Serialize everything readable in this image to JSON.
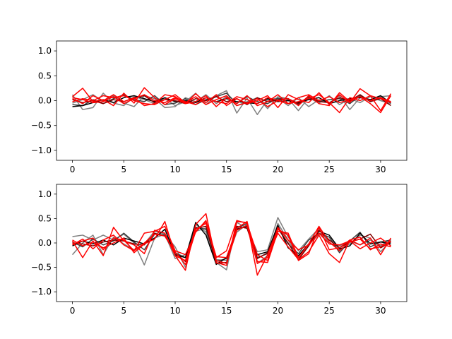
{
  "chart_data": [
    {
      "type": "line",
      "title": "",
      "xlabel": "",
      "ylabel": "",
      "xlim": [
        -1.55,
        32.55
      ],
      "ylim": [
        -1.2,
        1.2
      ],
      "xticks": [
        0,
        5,
        10,
        15,
        20,
        25,
        30
      ],
      "yticks": [
        -1.0,
        -0.5,
        0.0,
        0.5,
        1.0
      ],
      "xtick_labels": [
        "0",
        "5",
        "10",
        "15",
        "20",
        "25",
        "30"
      ],
      "ytick_labels": [
        "−1.0",
        "−0.5",
        "0.0",
        "0.5",
        "1.0"
      ],
      "grid": false,
      "x": [
        0,
        1,
        2,
        3,
        4,
        5,
        6,
        7,
        8,
        9,
        10,
        11,
        12,
        13,
        14,
        15,
        16,
        17,
        18,
        19,
        20,
        21,
        22,
        23,
        24,
        25,
        26,
        27,
        28,
        29,
        30,
        31
      ],
      "series": [
        {
          "color": "#7f7f7f",
          "values": [
            0.12,
            -0.18,
            -0.14,
            0.15,
            -0.05,
            -0.1,
            0.08,
            0.02,
            -0.06,
            0.05,
            -0.1,
            -0.02,
            0.15,
            -0.08,
            0.1,
            0.2,
            -0.25,
            0.05,
            -0.28,
            0.02,
            0.05,
            -0.1,
            0.06,
            -0.12,
            0.02,
            -0.05,
            0.1,
            -0.18,
            0.06,
            0.02,
            0.08,
            0.1
          ]
        },
        {
          "color": "#7f7f7f",
          "values": [
            -0.05,
            0.02,
            0.12,
            -0.02,
            0.1,
            -0.05,
            -0.12,
            0.1,
            0.04,
            -0.14,
            -0.12,
            0.06,
            -0.02,
            0.12,
            -0.06,
            0.08,
            -0.1,
            -0.02,
            0.06,
            -0.16,
            0.08,
            0.04,
            -0.2,
            0.06,
            -0.05,
            0.1,
            -0.08,
            0.04,
            -0.04,
            0.08,
            0.0,
            -0.06
          ]
        },
        {
          "color": "#3f3f3f",
          "values": [
            -0.08,
            -0.1,
            0.02,
            -0.06,
            0.04,
            0.12,
            0.02,
            -0.02,
            0.1,
            -0.08,
            -0.05,
            0.04,
            -0.08,
            0.02,
            0.08,
            0.15,
            -0.06,
            0.08,
            -0.02,
            -0.06,
            0.05,
            0.02,
            -0.08,
            0.05,
            -0.02,
            0.02,
            0.04,
            -0.06,
            0.1,
            -0.02,
            0.06,
            -0.02
          ]
        },
        {
          "color": "#000000",
          "values": [
            -0.12,
            -0.1,
            -0.04,
            0.02,
            -0.04,
            0.06,
            0.1,
            0.04,
            -0.02,
            0.06,
            -0.02,
            0.0,
            -0.04,
            0.06,
            -0.02,
            0.04,
            -0.02,
            -0.04,
            -0.06,
            0.04,
            -0.02,
            0.0,
            -0.04,
            0.02,
            0.06,
            -0.06,
            0.0,
            0.04,
            0.06,
            0.02,
            0.1,
            -0.05
          ]
        },
        {
          "color": "#7f0000",
          "values": [
            0.02,
            -0.04,
            0.0,
            -0.06,
            0.02,
            -0.02,
            0.06,
            0.1,
            -0.04,
            0.02,
            0.0,
            -0.06,
            0.04,
            0.0,
            0.08,
            -0.02,
            0.04,
            -0.08,
            0.06,
            -0.02,
            0.02,
            0.04,
            -0.06,
            0.08,
            -0.02,
            -0.04,
            0.06,
            0.0,
            0.12,
            -0.02,
            0.04,
            -0.1
          ]
        },
        {
          "color": "#ff0000",
          "values": [
            0.08,
            0.25,
            -0.02,
            0.02,
            -0.1,
            0.15,
            -0.05,
            0.26,
            0.06,
            -0.08,
            0.04,
            -0.06,
            0.14,
            -0.04,
            0.12,
            -0.1,
            0.04,
            -0.06,
            0.0,
            0.1,
            -0.14,
            0.12,
            0.02,
            -0.04,
            0.16,
            -0.08,
            0.12,
            -0.04,
            0.24,
            0.1,
            -0.2,
            0.14
          ]
        },
        {
          "color": "#ff0000",
          "values": [
            0.04,
            -0.06,
            0.1,
            0.0,
            0.12,
            -0.02,
            0.06,
            -0.1,
            -0.06,
            0.12,
            0.08,
            -0.06,
            -0.02,
            0.1,
            -0.12,
            0.06,
            -0.06,
            0.1,
            -0.1,
            -0.02,
            0.12,
            -0.06,
            -0.02,
            0.04,
            0.12,
            -0.04,
            -0.24,
            0.06,
            0.0,
            0.1,
            0.04,
            -0.04
          ]
        },
        {
          "color": "#ff0000",
          "values": [
            -0.02,
            0.04,
            0.0,
            0.1,
            0.06,
            0.1,
            0.0,
            -0.06,
            -0.08,
            0.02,
            0.12,
            -0.04,
            0.08,
            -0.08,
            0.02,
            0.1,
            -0.1,
            -0.04,
            0.04,
            -0.12,
            0.0,
            0.04,
            -0.1,
            0.1,
            -0.06,
            -0.1,
            0.16,
            -0.02,
            0.08,
            -0.06,
            -0.24,
            0.1
          ]
        },
        {
          "color": "#ff0000",
          "values": [
            0.06,
            0.02,
            -0.04,
            -0.02,
            0.08,
            -0.06,
            0.04,
            0.12,
            0.0,
            -0.04,
            0.06,
            -0.02,
            -0.08,
            0.06,
            -0.02,
            -0.06,
            0.08,
            0.02,
            -0.06,
            0.06,
            0.0,
            -0.06,
            0.06,
            0.12,
            0.0,
            0.08,
            -0.04,
            0.02,
            0.08,
            0.0,
            0.06,
            -0.02
          ]
        }
      ]
    },
    {
      "type": "line",
      "title": "",
      "xlabel": "",
      "ylabel": "",
      "xlim": [
        -1.55,
        32.55
      ],
      "ylim": [
        -1.2,
        1.2
      ],
      "xticks": [
        0,
        5,
        10,
        15,
        20,
        25,
        30
      ],
      "yticks": [
        -1.0,
        -0.5,
        0.0,
        0.5,
        1.0
      ],
      "xtick_labels": [
        "0",
        "5",
        "10",
        "15",
        "20",
        "25",
        "30"
      ],
      "ytick_labels": [
        "−1.0",
        "−0.5",
        "0.0",
        "0.5",
        "1.0"
      ],
      "grid": false,
      "x": [
        0,
        1,
        2,
        3,
        4,
        5,
        6,
        7,
        8,
        9,
        10,
        11,
        12,
        13,
        14,
        15,
        16,
        17,
        18,
        19,
        20,
        21,
        22,
        23,
        24,
        25,
        26,
        27,
        28,
        29,
        30,
        31
      ],
      "series": [
        {
          "color": "#7f7f7f",
          "values": [
            0.13,
            0.16,
            0.06,
            0.16,
            0.06,
            0.18,
            0.0,
            -0.45,
            0.1,
            0.18,
            -0.08,
            -0.5,
            0.38,
            0.22,
            -0.4,
            -0.55,
            0.42,
            0.3,
            -0.18,
            -0.14,
            0.52,
            0.12,
            -0.16,
            0.08,
            0.3,
            -0.02,
            -0.06,
            0.04,
            -0.04,
            0.06,
            -0.06,
            0.08
          ]
        },
        {
          "color": "#7f7f7f",
          "values": [
            -0.24,
            0.0,
            0.16,
            -0.24,
            0.12,
            -0.02,
            -0.14,
            -0.02,
            0.24,
            0.18,
            -0.32,
            -0.24,
            0.24,
            0.3,
            -0.34,
            -0.36,
            0.22,
            0.38,
            -0.42,
            -0.26,
            0.4,
            0.06,
            -0.3,
            -0.04,
            0.18,
            0.12,
            -0.14,
            -0.02,
            0.16,
            0.1,
            -0.18,
            0.04
          ]
        },
        {
          "color": "#3f3f3f",
          "values": [
            0.02,
            -0.08,
            0.08,
            -0.04,
            0.04,
            0.2,
            0.02,
            -0.14,
            0.18,
            0.16,
            -0.2,
            -0.3,
            0.32,
            0.28,
            -0.38,
            -0.32,
            0.3,
            0.4,
            -0.3,
            -0.22,
            0.3,
            -0.02,
            -0.22,
            0.06,
            0.2,
            0.12,
            -0.2,
            0.04,
            0.22,
            -0.08,
            0.02,
            0.06
          ]
        },
        {
          "color": "#000000",
          "values": [
            -0.06,
            0.04,
            -0.02,
            0.06,
            -0.04,
            0.1,
            0.04,
            -0.02,
            0.1,
            0.28,
            -0.24,
            -0.3,
            0.42,
            0.16,
            -0.44,
            -0.3,
            0.28,
            0.34,
            -0.24,
            -0.18,
            0.36,
            -0.1,
            -0.26,
            -0.02,
            0.24,
            0.16,
            -0.12,
            -0.06,
            0.2,
            -0.02,
            0.02,
            -0.02
          ]
        },
        {
          "color": "#7f0000",
          "values": [
            0.0,
            -0.02,
            -0.06,
            0.02,
            0.06,
            0.04,
            -0.02,
            -0.04,
            0.2,
            0.14,
            -0.2,
            -0.38,
            0.3,
            0.34,
            -0.42,
            -0.4,
            0.34,
            0.3,
            -0.32,
            -0.2,
            0.3,
            0.0,
            -0.34,
            -0.06,
            0.26,
            0.06,
            -0.1,
            0.02,
            0.08,
            0.18,
            -0.1,
            0.02
          ]
        },
        {
          "color": "#ff0000",
          "values": [
            0.04,
            -0.3,
            0.04,
            -0.26,
            0.32,
            0.04,
            -0.04,
            -0.22,
            0.26,
            0.2,
            -0.26,
            -0.56,
            0.38,
            0.6,
            -0.4,
            -0.46,
            0.44,
            0.42,
            -0.66,
            -0.24,
            0.28,
            0.16,
            -0.36,
            -0.22,
            0.32,
            -0.14,
            -0.1,
            0.06,
            -0.04,
            0.1,
            -0.24,
            0.1
          ]
        },
        {
          "color": "#ff0000",
          "values": [
            -0.04,
            0.08,
            -0.12,
            0.06,
            0.16,
            -0.04,
            -0.16,
            0.0,
            0.18,
            0.14,
            -0.18,
            -0.44,
            0.24,
            0.44,
            -0.36,
            -0.42,
            0.26,
            0.36,
            -0.42,
            -0.3,
            0.2,
            -0.08,
            -0.34,
            -0.18,
            0.16,
            -0.22,
            -0.4,
            0.06,
            0.12,
            -0.14,
            -0.02,
            -0.08
          ]
        },
        {
          "color": "#ff0000",
          "values": [
            0.06,
            -0.06,
            0.02,
            -0.1,
            0.0,
            0.1,
            -0.2,
            -0.02,
            0.08,
            0.44,
            -0.26,
            -0.36,
            0.28,
            0.4,
            -0.28,
            -0.3,
            0.3,
            0.44,
            -0.38,
            -0.4,
            0.24,
            0.2,
            -0.3,
            -0.02,
            0.34,
            0.02,
            -0.16,
            0.02,
            0.08,
            -0.12,
            -0.08,
            0.04
          ]
        },
        {
          "color": "#ff0000",
          "values": [
            -0.02,
            0.04,
            0.1,
            -0.14,
            0.1,
            0.06,
            -0.16,
            0.2,
            0.24,
            0.34,
            -0.16,
            -0.24,
            0.22,
            0.46,
            -0.3,
            -0.16,
            0.46,
            0.4,
            -0.24,
            -0.36,
            0.32,
            0.06,
            -0.14,
            -0.04,
            0.2,
            -0.02,
            -0.04,
            0.04,
            -0.12,
            0.0,
            0.1,
            -0.06
          ]
        }
      ]
    }
  ]
}
